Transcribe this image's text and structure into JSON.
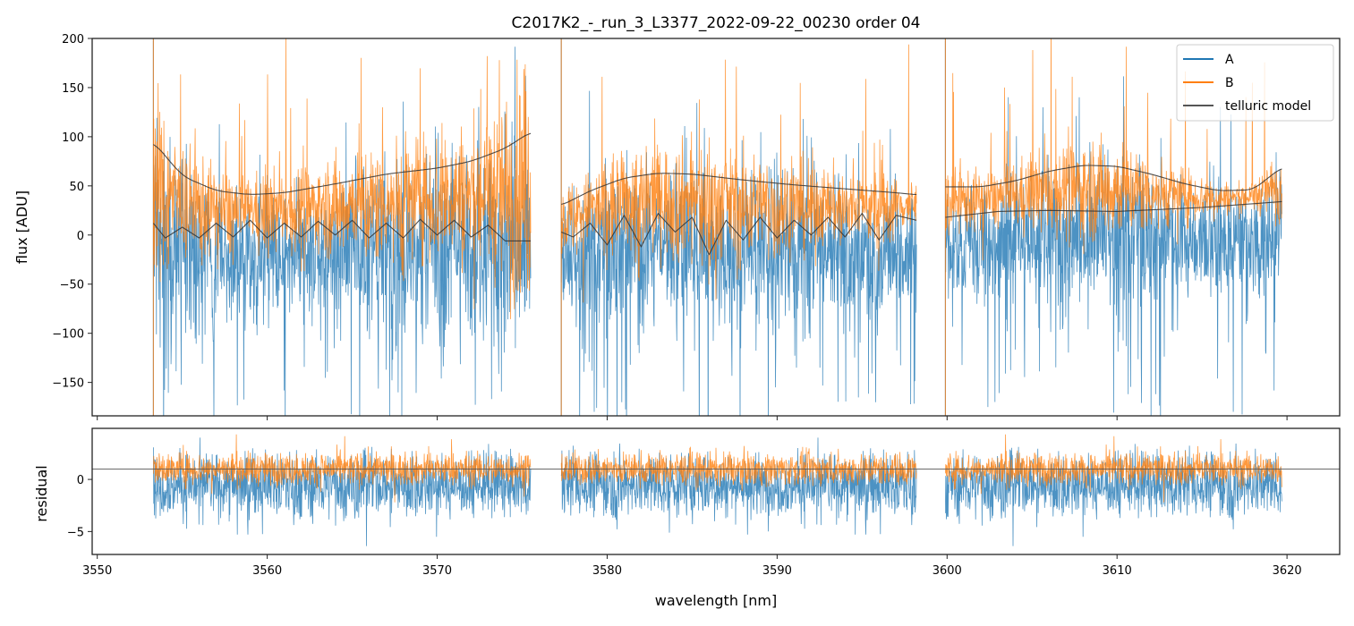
{
  "chart_data": [
    {
      "type": "line",
      "title": "C2017K2_-_run_3_L3377_2022-09-22_00230  order 04",
      "xlabel": "",
      "ylabel": "flux [ADU]",
      "xlim": [
        3549.7,
        3623.1
      ],
      "ylim": [
        -184,
        200
      ],
      "yticks": [
        200,
        150,
        100,
        50,
        0,
        -50,
        -100,
        -150
      ],
      "ytick_labels": [
        "200",
        "150",
        "100",
        "50",
        "0",
        "−50",
        "−100",
        "−150"
      ],
      "xticks": [
        3550,
        3560,
        3570,
        3580,
        3590,
        3600,
        3610,
        3620
      ],
      "grid": false,
      "legend": {
        "placement": "top-right",
        "entries": [
          {
            "label": "A",
            "color": "#1f77b4"
          },
          {
            "label": "B",
            "color": "#ff7f0e"
          },
          {
            "label": "telluric model",
            "color": "#333333"
          }
        ]
      },
      "segments": [
        [
          3553.3,
          3575.5
        ],
        [
          3577.3,
          3598.2
        ],
        [
          3599.9,
          3619.7
        ]
      ],
      "series": [
        {
          "name": "A",
          "color": "#1f77b4",
          "description_range": [
            -184,
            200
          ]
        },
        {
          "name": "B",
          "color": "#ff7f0e",
          "description_range": [
            -120,
            200
          ]
        },
        {
          "name": "telluric model (upper)",
          "color": "#333333",
          "x_y": [
            [
              [
                3553.3,
                95
              ],
              [
                3555,
                60
              ],
              [
                3557,
                45
              ],
              [
                3559,
                41
              ],
              [
                3561,
                43
              ],
              [
                3564,
                52
              ],
              [
                3567,
                62
              ],
              [
                3570,
                68
              ],
              [
                3572,
                75
              ],
              [
                3574,
                88
              ],
              [
                3575.5,
                105
              ]
            ],
            [
              [
                3577.3,
                30
              ],
              [
                3579,
                45
              ],
              [
                3581,
                58
              ],
              [
                3583,
                63
              ],
              [
                3585,
                62
              ],
              [
                3588,
                56
              ],
              [
                3591,
                51
              ],
              [
                3594,
                47
              ],
              [
                3597,
                43
              ],
              [
                3598.2,
                41
              ]
            ],
            [
              [
                3599.9,
                49
              ],
              [
                3602,
                49
              ],
              [
                3604,
                55
              ],
              [
                3606,
                65
              ],
              [
                3608,
                71
              ],
              [
                3610,
                70
              ],
              [
                3612,
                62
              ],
              [
                3614,
                52
              ],
              [
                3616,
                45
              ],
              [
                3618,
                46
              ],
              [
                3619.7,
                69
              ]
            ]
          ]
        },
        {
          "name": "telluric model (lower)",
          "color": "#333333",
          "x_y": [
            [
              [
                3553.3,
                12
              ],
              [
                3554,
                -3
              ],
              [
                3555,
                8
              ],
              [
                3556,
                -3
              ],
              [
                3557,
                12
              ],
              [
                3558,
                -2
              ],
              [
                3559,
                15
              ],
              [
                3560,
                -3
              ],
              [
                3561,
                12
              ],
              [
                3562,
                -2
              ],
              [
                3563,
                14
              ],
              [
                3564,
                0
              ],
              [
                3565,
                15
              ],
              [
                3566,
                -3
              ],
              [
                3567,
                12
              ],
              [
                3568,
                -3
              ],
              [
                3569,
                16
              ],
              [
                3570,
                0
              ],
              [
                3571,
                15
              ],
              [
                3572,
                -2
              ],
              [
                3573,
                10
              ],
              [
                3574,
                -6
              ],
              [
                3575.5,
                -6
              ]
            ],
            [
              [
                3577.3,
                3
              ],
              [
                3578,
                -2
              ],
              [
                3579,
                12
              ],
              [
                3580,
                -10
              ],
              [
                3581,
                20
              ],
              [
                3582,
                -12
              ],
              [
                3583,
                22
              ],
              [
                3584,
                3
              ],
              [
                3585,
                18
              ],
              [
                3586,
                -20
              ],
              [
                3587,
                15
              ],
              [
                3588,
                -5
              ],
              [
                3589,
                18
              ],
              [
                3590,
                -3
              ],
              [
                3591,
                15
              ],
              [
                3592,
                0
              ],
              [
                3593,
                18
              ],
              [
                3594,
                -2
              ],
              [
                3595,
                22
              ],
              [
                3596,
                -5
              ],
              [
                3597,
                20
              ],
              [
                3598.2,
                15
              ]
            ],
            [
              [
                3599.9,
                18
              ],
              [
                3603,
                24
              ],
              [
                3606,
                25
              ],
              [
                3610,
                24
              ],
              [
                3615,
                28
              ],
              [
                3619.7,
                34
              ]
            ]
          ]
        }
      ]
    },
    {
      "type": "line",
      "title": "",
      "xlabel": "wavelength [nm]",
      "ylabel": "residual",
      "xlim": [
        3549.7,
        3623.1
      ],
      "ylim": [
        -7.2,
        4.9
      ],
      "yticks": [
        0,
        -5
      ],
      "ytick_labels": [
        "0",
        "−5"
      ],
      "xticks": [
        3550,
        3560,
        3570,
        3580,
        3590,
        3600,
        3610,
        3620
      ],
      "xtick_labels": [
        "3550",
        "3560",
        "3570",
        "3580",
        "3590",
        "3600",
        "3610",
        "3620"
      ],
      "reference_line": 1.0,
      "series": [
        {
          "name": "A",
          "color": "#1f77b4",
          "center": -0.5,
          "spread": 2.5
        },
        {
          "name": "B",
          "color": "#ff7f0e",
          "center": 1.0,
          "spread": 1.3
        }
      ]
    }
  ]
}
